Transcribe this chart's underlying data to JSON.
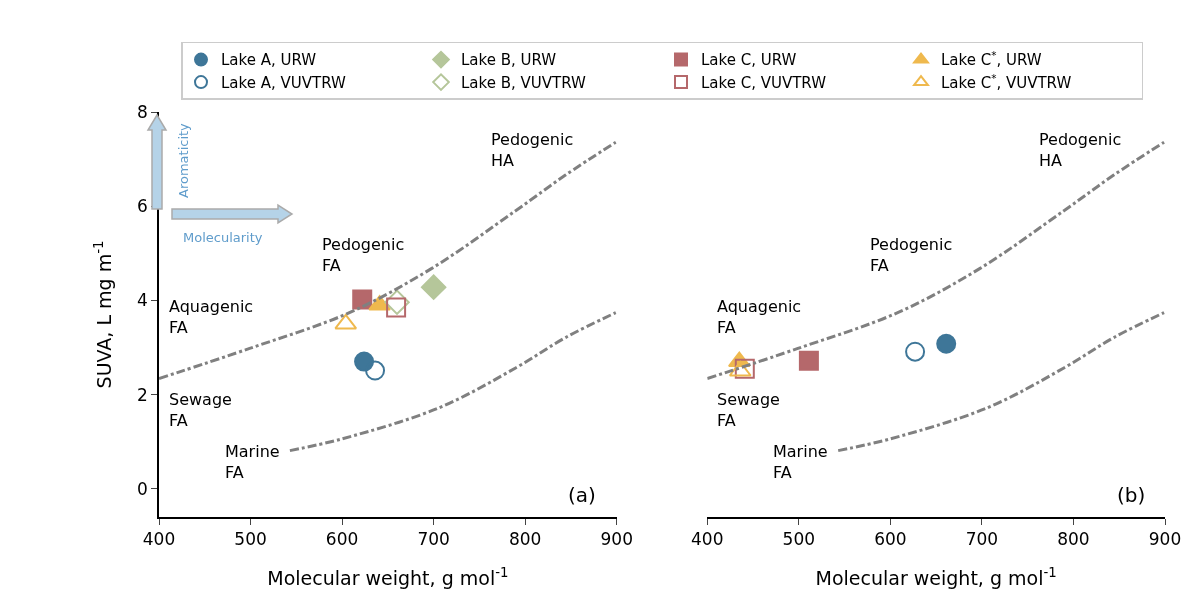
{
  "chart_data": [
    {
      "type": "scatter",
      "xlabel": "Molecular weight, g mol$^{-1}$",
      "ylabel": "SUVA, L mg m$^{-1}$",
      "xlim": [
        400,
        900
      ],
      "ylim": [
        -0.6,
        8
      ],
      "xticks": [
        400,
        500,
        600,
        700,
        800,
        900
      ],
      "yticks": [
        0,
        2,
        4,
        6,
        8
      ],
      "grid": false,
      "legend": "top",
      "series": [
        {
          "name": "Lake A, URW",
          "color": "#3e7698",
          "marker": "circle",
          "x": [
            624
          ],
          "values": [
            2.7
          ]
        },
        {
          "name": "Lake B, URW",
          "color": "#b5c69a",
          "marker": "diamond",
          "x": [
            700
          ],
          "values": [
            4.28
          ]
        },
        {
          "name": "Lake C, URW",
          "color": "#b5686b",
          "marker": "square",
          "x": [
            622
          ],
          "values": [
            4.02
          ]
        },
        {
          "name": "Lake C$^{*}$, URW",
          "color": "#efb94e",
          "marker": "triangle",
          "x": [
            641
          ],
          "values": [
            3.9
          ]
        },
        {
          "name": "Lake A, VUVTRW",
          "color": "#3e7698",
          "marker": "circle-open",
          "x": [
            636
          ],
          "values": [
            2.51
          ]
        },
        {
          "name": "Lake B, VUVTRW",
          "color": "#b5c69a",
          "marker": "diamond-open",
          "x": [
            660
          ],
          "values": [
            3.96
          ]
        },
        {
          "name": "Lake C, VUVTRW",
          "color": "#b5686b",
          "marker": "square-open",
          "x": [
            659
          ],
          "values": [
            3.85
          ]
        },
        {
          "name": "Lake C$^{*}$, VUVTRW",
          "color": "#efb94e",
          "marker": "triangle-open",
          "x": [
            604
          ],
          "values": [
            3.5
          ]
        },
        {
          "type": "line",
          "color": "#808080",
          "line_style": "dashdot",
          "marker": "none",
          "x": [
            400,
            499,
            608,
            698,
            790,
            844,
            899
          ],
          "values": [
            2.34,
            2.98,
            3.74,
            4.68,
            5.91,
            6.66,
            7.36
          ]
        },
        {
          "type": "line",
          "color": "#808080",
          "line_style": "dashdot",
          "marker": "none",
          "x": [
            543,
            600,
            706,
            790,
            844,
            899
          ],
          "values": [
            0.81,
            1.06,
            1.72,
            2.57,
            3.21,
            3.74
          ]
        }
      ],
      "annotations": [
        "Pedogenic\nHA",
        "Pedogenic\nFA",
        "Aquagenic\nFA",
        "Sewage\nFA",
        "Marine\nFA",
        "(a)",
        "Aromaticity",
        "Molecularity"
      ]
    },
    {
      "type": "scatter",
      "xlabel": "Molecular weight, g mol$^{-1}$",
      "xlim": [
        400,
        900
      ],
      "ylim": [
        -0.6,
        8
      ],
      "xticks": [
        400,
        500,
        600,
        700,
        800,
        900
      ],
      "yticks": [
        0,
        2,
        4,
        6,
        8
      ],
      "grid": false,
      "tick_labels": "x",
      "series": [
        {
          "color": "#3e7698",
          "marker": "circle",
          "x": [
            661
          ],
          "values": [
            3.08
          ]
        },
        {
          "color": "#b5686b",
          "marker": "square",
          "x": [
            511
          ],
          "values": [
            2.72
          ]
        },
        {
          "color": "#efb94e",
          "marker": "triangle",
          "x": [
            435
          ],
          "values": [
            2.7
          ]
        },
        {
          "color": "#3e7698",
          "marker": "circle-open",
          "x": [
            627
          ],
          "values": [
            2.91
          ]
        },
        {
          "color": "#b5686b",
          "marker": "square-open",
          "x": [
            441
          ],
          "values": [
            2.55
          ]
        },
        {
          "color": "#efb94e",
          "marker": "triangle-open",
          "x": [
            436
          ],
          "values": [
            2.5
          ]
        },
        {
          "type": "line",
          "color": "#808080",
          "line_style": "dashdot",
          "marker": "none",
          "x": [
            400,
            499,
            608,
            698,
            790,
            844,
            899
          ],
          "values": [
            2.34,
            2.98,
            3.74,
            4.68,
            5.91,
            6.66,
            7.36
          ]
        },
        {
          "type": "line",
          "color": "#808080",
          "line_style": "dashdot",
          "marker": "none",
          "x": [
            543,
            600,
            706,
            790,
            844,
            899
          ],
          "values": [
            0.81,
            1.06,
            1.72,
            2.57,
            3.21,
            3.74
          ]
        }
      ],
      "annotations": [
        "Pedogenic\nHA",
        "Pedogenic\nFA",
        "Aquagenic\nFA",
        "Sewage\nFA",
        "Marine\nFA",
        "(b)"
      ]
    }
  ]
}
